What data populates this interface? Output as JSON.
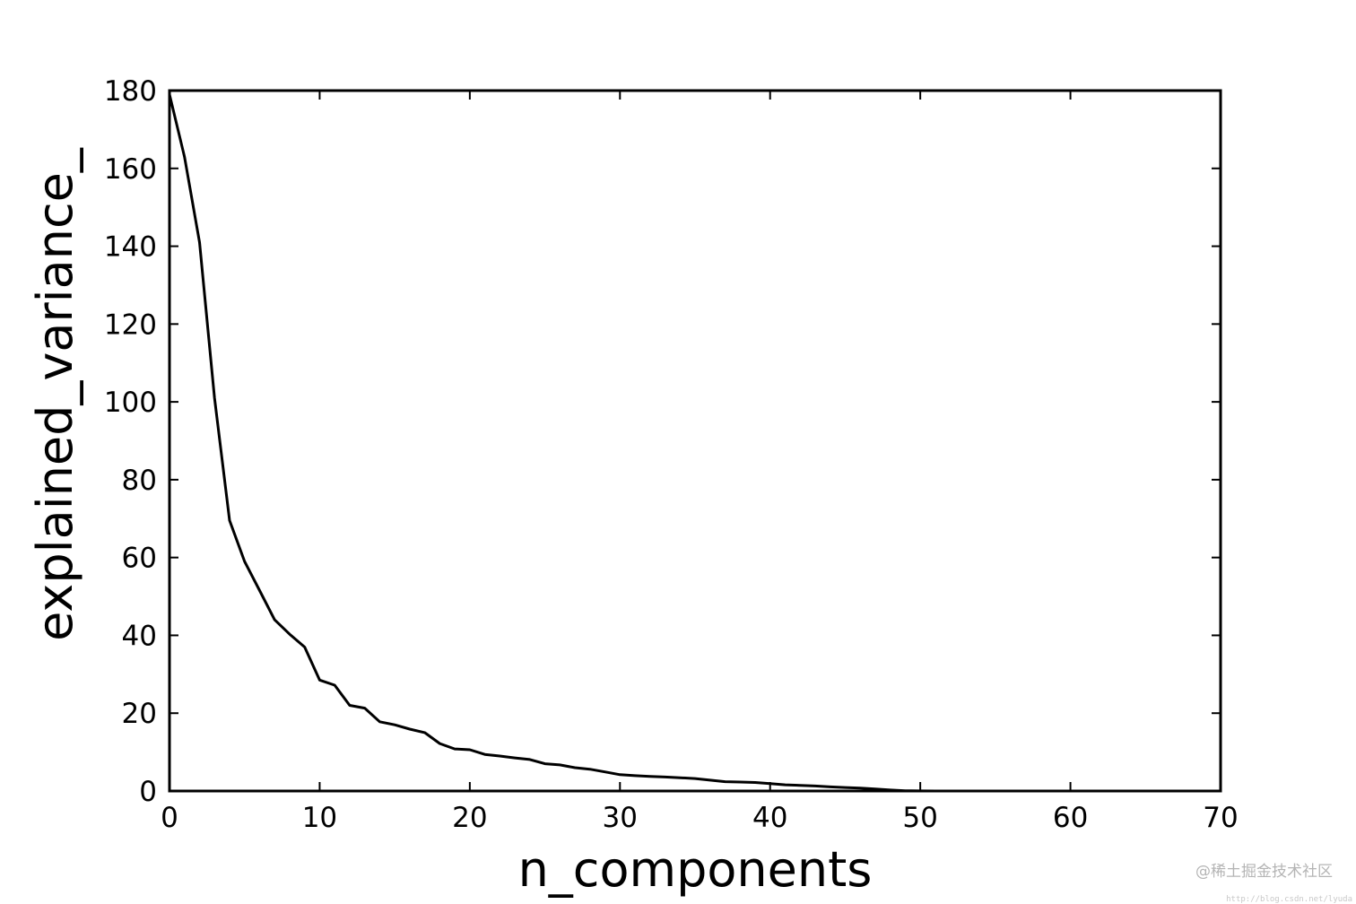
{
  "chart_data": {
    "type": "line",
    "title": "",
    "xlabel": "n_components",
    "ylabel": "explained_variance_",
    "xlim": [
      0,
      70
    ],
    "ylim": [
      0,
      180
    ],
    "xticks": [
      0,
      10,
      20,
      30,
      40,
      50,
      60,
      70
    ],
    "yticks": [
      0,
      20,
      40,
      60,
      80,
      100,
      120,
      140,
      160,
      180
    ],
    "xtick_labels": [
      "0",
      "10",
      "20",
      "30",
      "40",
      "50",
      "60",
      "70"
    ],
    "ytick_labels": [
      "0",
      "20",
      "40",
      "60",
      "80",
      "100",
      "120",
      "140",
      "160",
      "180"
    ],
    "grid": false,
    "line_color": "#000000",
    "series": [
      {
        "x": [
          0,
          1,
          2,
          3,
          4,
          5,
          6,
          7,
          8,
          9,
          10,
          11,
          12,
          13,
          14,
          15,
          16,
          17,
          18,
          19,
          20,
          21,
          22,
          23,
          24,
          25,
          26,
          27,
          28,
          29,
          30,
          31,
          32,
          33,
          34,
          35,
          36,
          37,
          38,
          39,
          40,
          41,
          42,
          43,
          44,
          45,
          46,
          47,
          48,
          49,
          50,
          51,
          52,
          53,
          54,
          55,
          56,
          57,
          58,
          59,
          60,
          61,
          62,
          63
        ],
        "values": [
          179,
          163,
          141,
          101,
          69.5,
          59,
          51.5,
          44,
          40.3,
          37,
          28.5,
          27.2,
          22,
          21.3,
          17.8,
          17,
          15.9,
          15,
          12.2,
          10.8,
          10.6,
          9.4,
          9,
          8.5,
          8.1,
          7,
          6.7,
          6,
          5.6,
          4.9,
          4.2,
          3.95,
          3.75,
          3.6,
          3.4,
          3.2,
          2.8,
          2.4,
          2.3,
          2.2,
          1.9,
          1.6,
          1.45,
          1.3,
          1.05,
          0.9,
          0.75,
          0.5,
          0.25,
          0.08,
          0.02,
          0.01,
          0.01,
          0.01,
          0,
          0,
          0,
          0,
          0,
          0,
          0,
          0,
          0,
          0
        ]
      }
    ]
  },
  "watermark": {
    "text": "@稀土掘金技术社区",
    "url": "http://blog.csdn.net/lyuda"
  }
}
